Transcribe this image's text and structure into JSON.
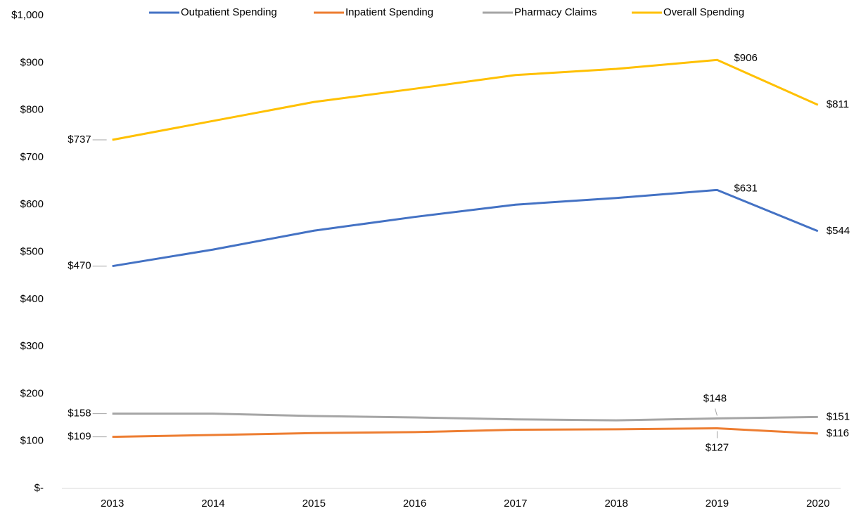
{
  "chart_data": {
    "type": "line",
    "categories": [
      "2013",
      "2014",
      "2015",
      "2016",
      "2017",
      "2018",
      "2019",
      "2020"
    ],
    "series": [
      {
        "name": "Outpatient Spending",
        "color": "#4472c4",
        "values": [
          470,
          505,
          545,
          574,
          600,
          614,
          631,
          544
        ],
        "value_labels": [
          "$470",
          null,
          null,
          null,
          null,
          null,
          "$631",
          "$544"
        ]
      },
      {
        "name": "Inpatient Spending",
        "color": "#ed7d31",
        "values": [
          109,
          113,
          117,
          119,
          124,
          125,
          127,
          116
        ],
        "value_labels": [
          "$109",
          null,
          null,
          null,
          null,
          null,
          "$127",
          "$116"
        ]
      },
      {
        "name": "Pharmacy Claims",
        "color": "#a5a5a5",
        "values": [
          158,
          158,
          153,
          150,
          146,
          144,
          148,
          151
        ],
        "value_labels": [
          "$158",
          null,
          null,
          null,
          null,
          null,
          "$148",
          "$151"
        ]
      },
      {
        "name": "Overall Spending",
        "color": "#ffc000",
        "values": [
          737,
          777,
          817,
          845,
          874,
          887,
          906,
          811
        ],
        "value_labels": [
          "$737",
          null,
          null,
          null,
          null,
          null,
          "$906",
          "$811"
        ]
      }
    ],
    "ylim": [
      0,
      1000
    ],
    "yticks": [
      {
        "value": 0,
        "label": "$-"
      },
      {
        "value": 100,
        "label": "$100"
      },
      {
        "value": 200,
        "label": "$200"
      },
      {
        "value": 300,
        "label": "$300"
      },
      {
        "value": 400,
        "label": "$400"
      },
      {
        "value": 500,
        "label": "$500"
      },
      {
        "value": 600,
        "label": "$600"
      },
      {
        "value": 700,
        "label": "$700"
      },
      {
        "value": 800,
        "label": "$800"
      },
      {
        "value": 900,
        "label": "$900"
      },
      {
        "value": 1000,
        "label": "$1,000"
      }
    ],
    "grid": false,
    "legend": "top"
  }
}
